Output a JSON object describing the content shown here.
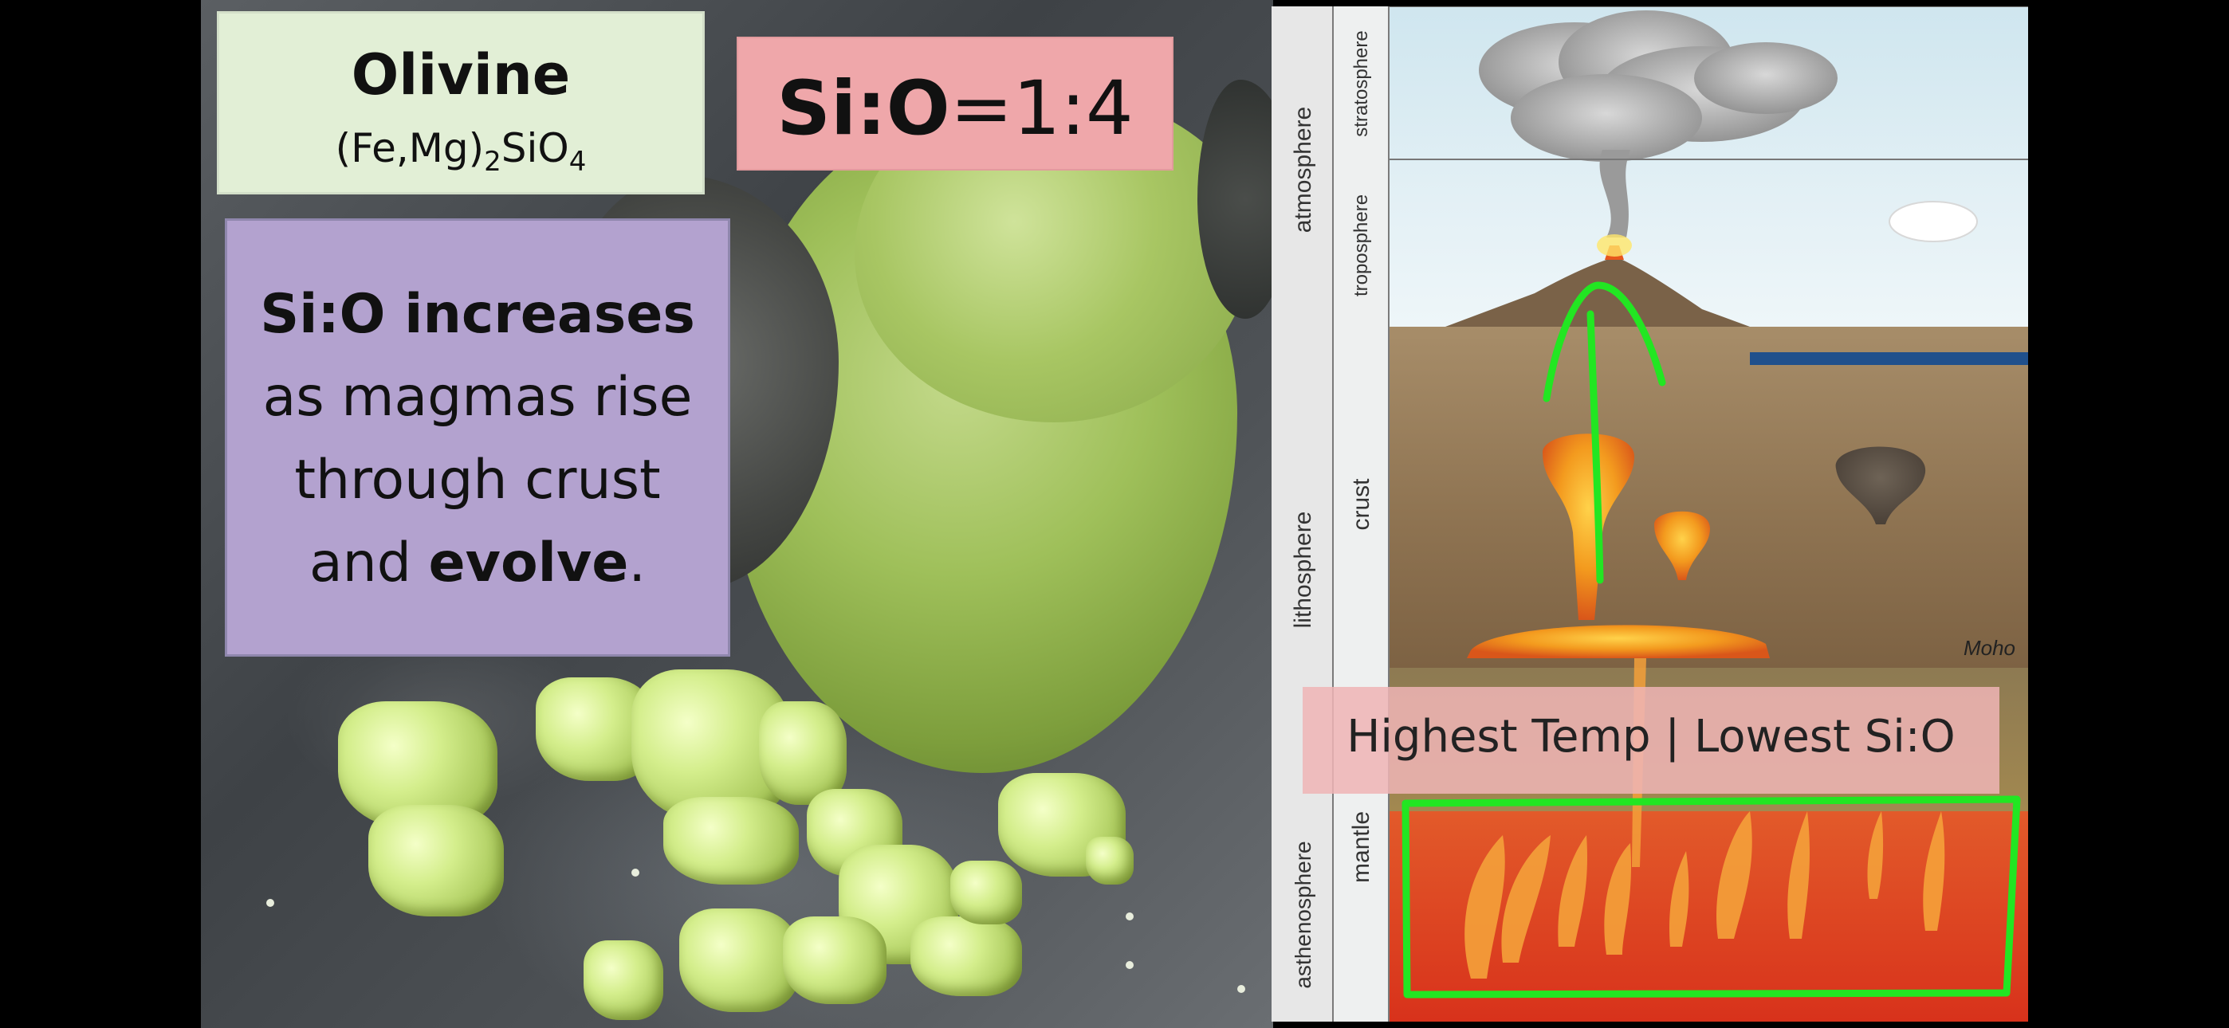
{
  "olivine_card": {
    "title": "Olivine",
    "formula_prefix": "(Fe,Mg)",
    "formula_sub1": "2",
    "formula_mid": "SiO",
    "formula_sub2": "4"
  },
  "ratio_card": {
    "bold_part": "Si:O",
    "rest": "=1:4"
  },
  "increase_card": {
    "line1_bold": "Si:O increases",
    "line2": "as magmas rise",
    "line3": "through crust",
    "line4_prefix": "and ",
    "line4_bold": "evolve",
    "line4_suffix": "."
  },
  "diagram": {
    "label_atmosphere": "atmosphere",
    "label_stratosphere": "stratosphere",
    "label_troposphere": "troposphere",
    "label_lithosphere": "lithosphere",
    "label_crust": "crust",
    "label_asthenosphere": "asthenosphere",
    "label_mantle": "mantle",
    "label_moho": "Moho"
  },
  "temp_banner": {
    "text": "Highest Temp | Lowest Si:O"
  },
  "colors": {
    "olivine_card_bg": "#e2efd6",
    "ratio_card_bg": "#efa7aa",
    "increase_card_bg": "#b3a2cf",
    "annotation_green": "#22e622",
    "magma_orange": "#f08a1c"
  }
}
